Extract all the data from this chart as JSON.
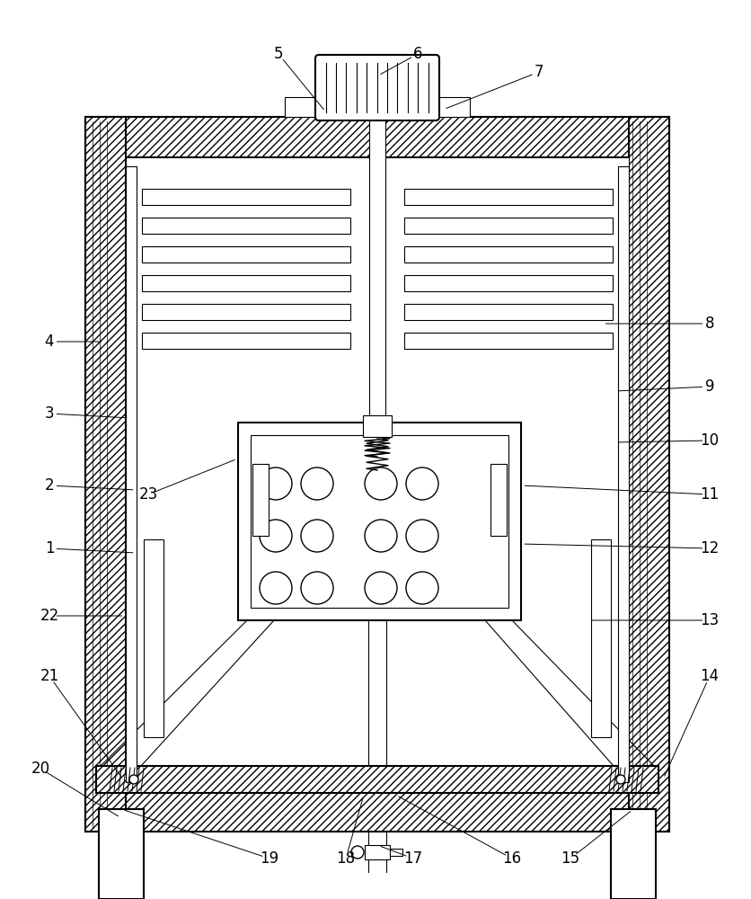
{
  "bg_color": "#ffffff",
  "lc": "#000000",
  "fig_w": 8.37,
  "fig_h": 10.0,
  "dpi": 100,
  "label_fs": 12
}
